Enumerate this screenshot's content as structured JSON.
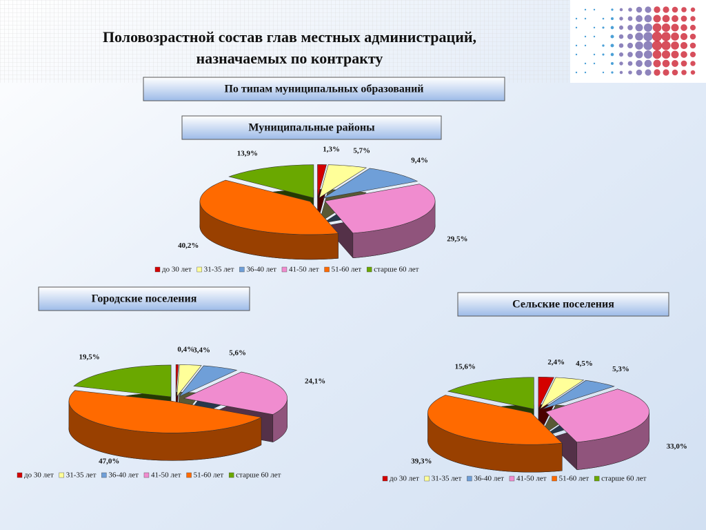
{
  "header": {
    "title": [
      "Половозрастной состав  глав местных администраций,",
      "назначаемых по контракту"
    ],
    "subtitle": "По типам муниципальных образований"
  },
  "chart_data": [
    {
      "type": "pie",
      "title": "Муниципальные районы",
      "categories": [
        "до 30 лет",
        "31-35 лет",
        "36-40 лет",
        "41-50 лет",
        "51-60 лет",
        "старше 60 лет"
      ],
      "values": [
        1.3,
        5.7,
        9.4,
        29.5,
        40.2,
        13.9
      ],
      "value_labels": [
        "1,3%",
        "5,7%",
        "9,4%",
        "29,5%",
        "40,2%",
        "13,9%"
      ],
      "colors": [
        "#d40000",
        "#ffff99",
        "#6f9fd8",
        "#f08ccf",
        "#ff6a00",
        "#6aa800"
      ]
    },
    {
      "type": "pie",
      "title": "Городские поселения",
      "categories": [
        "до 30 лет",
        "31-35 лет",
        "36-40 лет",
        "41-50 лет",
        "51-60 лет",
        "старше 60 лет"
      ],
      "values": [
        0.4,
        3.4,
        5.6,
        24.1,
        47.0,
        19.5
      ],
      "value_labels": [
        "0,4%",
        "3,4%",
        "5,6%",
        "24,1%",
        "47,0%",
        "19,5%"
      ],
      "colors": [
        "#d40000",
        "#ffff99",
        "#6f9fd8",
        "#f08ccf",
        "#ff6a00",
        "#6aa800"
      ]
    },
    {
      "type": "pie",
      "title": "Сельские поселения",
      "categories": [
        "до 30 лет",
        "31-35 лет",
        "36-40 лет",
        "41-50 лет",
        "51-60 лет",
        "старше 60 лет"
      ],
      "values": [
        2.4,
        4.5,
        5.3,
        33.0,
        39.3,
        15.6
      ],
      "value_labels": [
        "2,4%",
        "4,5%",
        "5,3%",
        "33,0%",
        "39,3%",
        "15,6%"
      ],
      "colors": [
        "#d40000",
        "#ffff99",
        "#6f9fd8",
        "#f08ccf",
        "#ff6a00",
        "#6aa800"
      ]
    }
  ]
}
